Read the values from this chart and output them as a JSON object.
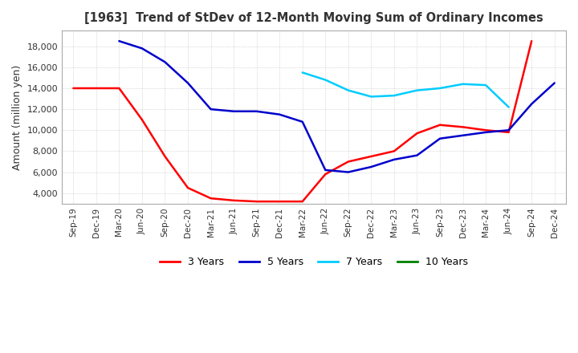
{
  "title": "[1963]  Trend of StDev of 12-Month Moving Sum of Ordinary Incomes",
  "ylabel": "Amount (million yen)",
  "background_color": "#ffffff",
  "plot_bg_color": "#ffffff",
  "grid_color": "#aaaaaa",
  "x_labels": [
    "Sep-19",
    "Dec-19",
    "Mar-20",
    "Jun-20",
    "Sep-20",
    "Dec-20",
    "Mar-21",
    "Jun-21",
    "Sep-21",
    "Dec-21",
    "Mar-22",
    "Jun-22",
    "Sep-22",
    "Dec-22",
    "Mar-23",
    "Jun-23",
    "Sep-23",
    "Dec-23",
    "Mar-24",
    "Jun-24",
    "Sep-24",
    "Dec-24"
  ],
  "ylim": [
    3000,
    19500
  ],
  "yticks": [
    4000,
    6000,
    8000,
    10000,
    12000,
    14000,
    16000,
    18000
  ],
  "series": {
    "3 Years": {
      "color": "#ff0000",
      "values": [
        14000,
        14000,
        14000,
        11000,
        7500,
        4500,
        3500,
        3300,
        3200,
        3200,
        3200,
        5800,
        7000,
        7500,
        8000,
        9700,
        10500,
        10300,
        10000,
        9800,
        18500,
        null
      ]
    },
    "5 Years": {
      "color": "#0000cc",
      "values": [
        null,
        null,
        18500,
        17800,
        16500,
        14500,
        12000,
        11800,
        11800,
        11500,
        10800,
        6200,
        6000,
        6500,
        7200,
        7600,
        9200,
        9500,
        9800,
        10000,
        12500,
        14500
      ]
    },
    "7 Years": {
      "color": "#00ccff",
      "values": [
        null,
        null,
        null,
        null,
        null,
        null,
        null,
        null,
        null,
        null,
        15500,
        14800,
        13800,
        13200,
        13300,
        13800,
        14000,
        14400,
        14300,
        12200,
        null,
        null
      ]
    },
    "10 Years": {
      "color": "#008000",
      "values": [
        null,
        null,
        null,
        null,
        null,
        null,
        null,
        null,
        null,
        null,
        null,
        null,
        null,
        null,
        null,
        null,
        null,
        null,
        null,
        null,
        null,
        null
      ]
    }
  },
  "legend_labels": [
    "3 Years",
    "5 Years",
    "7 Years",
    "10 Years"
  ],
  "legend_colors": [
    "#ff0000",
    "#0000cc",
    "#00ccff",
    "#008000"
  ]
}
